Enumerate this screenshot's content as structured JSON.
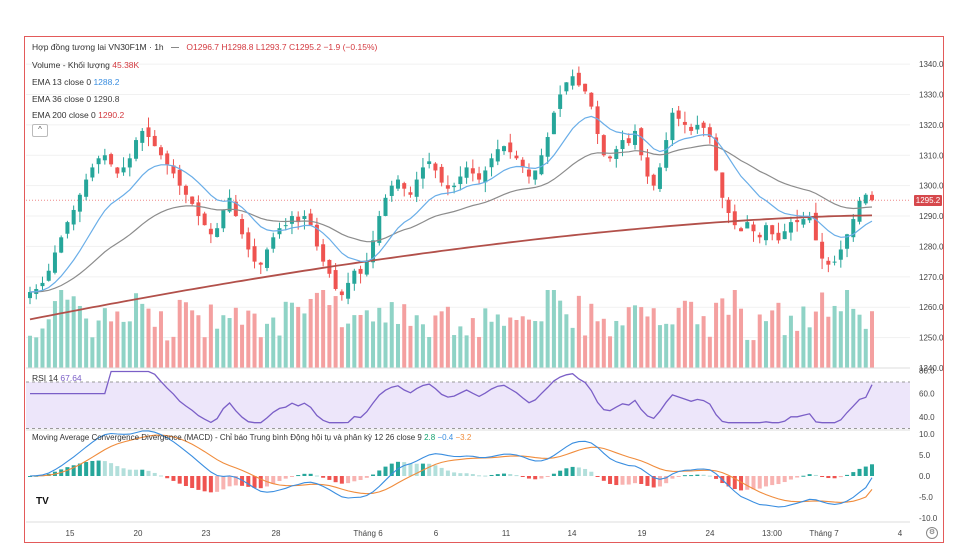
{
  "header": {
    "symbol": "Hợp đồng tương lai VN30F1M · 1h",
    "ohlc": "O1296.7 H1298.8 L1293.7 C1295.2 −1.9 (−0.15%)"
  },
  "legends": {
    "volume_label": "Volume - Khối lượng",
    "volume_value": "45.38K",
    "ema13_label": "EMA 13 close 0",
    "ema13_value": "1288.2",
    "ema36_label": "EMA 36 close 0",
    "ema36_value": "1290.8",
    "ema200_label": "EMA 200 close 0",
    "ema200_value": "1290.2",
    "rsi_label": "RSI 14",
    "rsi_value": "67.64",
    "macd_label": "Moving Average Convergence Divergence (MACD) - Chỉ báo Trung bình Động hội tụ và phân kỳ 12 26 close 9",
    "macd_hist": "2.8",
    "macd_line": "−0.4",
    "macd_signal": "−3.2"
  },
  "collapse_glyph": "^",
  "logo_text": "TV",
  "last_price_tag": "1295.2",
  "settings_glyph": "⚙",
  "colors": {
    "up": "#26a69a",
    "down": "#ef5350",
    "vol_up": "#8fd3c6",
    "vol_down": "#f4a0a0",
    "ema13": "#6aaee8",
    "ema36": "#8c8c8c",
    "ema200": "#b2504a",
    "rsi": "#7b5fc7",
    "macd": "#3a8ee0",
    "signal": "#f08c3c"
  },
  "chart_data": [
    {
      "type": "candlestick",
      "title": "Hợp đồng tương lai VN30F1M · 1h",
      "x_ticks": [
        "15",
        "20",
        "23",
        "28",
        "Tháng 6",
        "6",
        "11",
        "14",
        "19",
        "24",
        "13:00",
        "Tháng 7",
        "4"
      ],
      "y_ticks": [
        1240.0,
        1250.0,
        1260.0,
        1270.0,
        1280.0,
        1290.0,
        1300.0,
        1310.0,
        1320.0,
        1330.0,
        1340.0
      ],
      "ylim": [
        1240,
        1342
      ],
      "last_price": 1295.2,
      "close_series": [
        1265,
        1266,
        1268,
        1272,
        1278,
        1283,
        1288,
        1292,
        1297,
        1302,
        1306,
        1309,
        1310,
        1307,
        1304,
        1306,
        1309,
        1315,
        1318,
        1316,
        1313,
        1310,
        1307,
        1304,
        1300,
        1297,
        1294,
        1290,
        1287,
        1284,
        1286,
        1292,
        1296,
        1290,
        1284,
        1279,
        1275,
        1274,
        1279,
        1283,
        1286,
        1287,
        1290,
        1288,
        1290,
        1287,
        1280,
        1275,
        1271,
        1266,
        1264,
        1268,
        1272,
        1271,
        1275,
        1282,
        1290,
        1296,
        1300,
        1302,
        1299,
        1297,
        1302,
        1306,
        1308,
        1305,
        1301,
        1299,
        1300,
        1303,
        1306,
        1304,
        1302,
        1305,
        1309,
        1312,
        1313,
        1311,
        1309,
        1306,
        1303,
        1305,
        1310,
        1316,
        1324,
        1330,
        1334,
        1336,
        1333,
        1331,
        1326,
        1317,
        1310,
        1309,
        1312,
        1315,
        1314,
        1318,
        1310,
        1303,
        1300,
        1306,
        1315,
        1324,
        1322,
        1320,
        1318,
        1320,
        1319,
        1316,
        1305,
        1296,
        1291,
        1287,
        1285,
        1288,
        1285,
        1283,
        1287,
        1284,
        1282,
        1285,
        1288,
        1288,
        1289,
        1290,
        1282,
        1276,
        1274,
        1275,
        1279,
        1284,
        1289,
        1295,
        1297,
        1295.2
      ],
      "ema13": 1288.2,
      "ema36": 1290.8,
      "ema200": 1290.2
    },
    {
      "type": "bar",
      "title": "Volume - Khối lượng",
      "last_value": "45.38K"
    },
    {
      "type": "line",
      "title": "RSI 14",
      "y_ticks": [
        40.0,
        60.0,
        80.0
      ],
      "ylim": [
        33,
        82
      ],
      "last_value": 67.64
    },
    {
      "type": "line",
      "title": "MACD 12 26 close 9",
      "y_ticks": [
        -10.0,
        -5.0,
        0.0,
        5.0,
        10.0
      ],
      "ylim": [
        -11,
        11
      ],
      "histogram_last": 2.8,
      "macd_last": -0.4,
      "signal_last": -3.2
    }
  ]
}
